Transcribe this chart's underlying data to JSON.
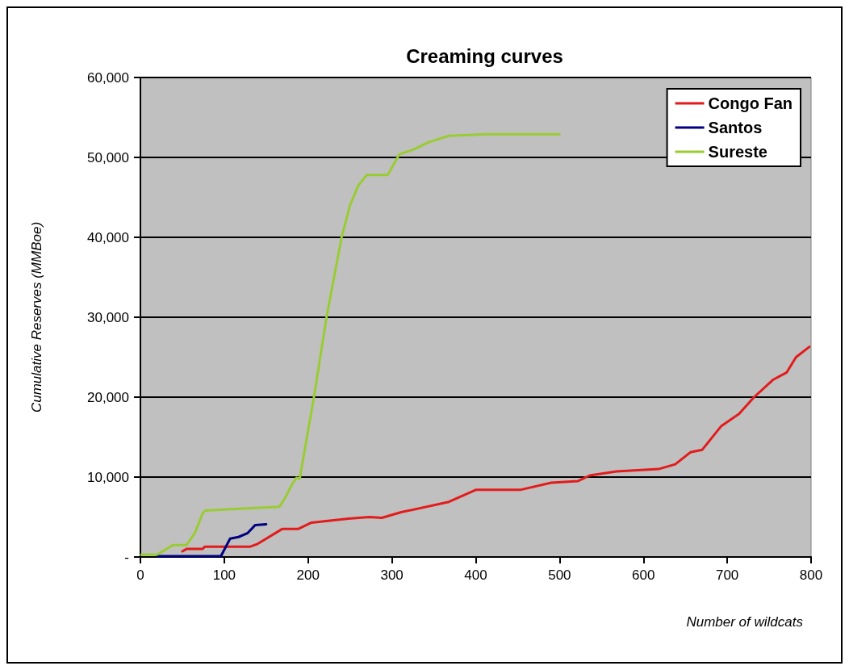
{
  "chart_data": {
    "type": "line",
    "title": "Creaming curves",
    "xlabel": "Number of wildcats",
    "ylabel": "Cumulative Reserves (MMBoe)",
    "xlim": [
      0,
      800
    ],
    "xticks": [
      0,
      100,
      200,
      300,
      400,
      500,
      600,
      700,
      800
    ],
    "ylim": [
      0,
      60000
    ],
    "yticks": [
      {
        "value": 0,
        "label": "-"
      },
      {
        "value": 10000,
        "label": "10,000"
      },
      {
        "value": 20000,
        "label": "20,000"
      },
      {
        "value": 30000,
        "label": "30,000"
      },
      {
        "value": 40000,
        "label": "40,000"
      },
      {
        "value": 50000,
        "label": "50,000"
      },
      {
        "value": 60000,
        "label": "60,000"
      }
    ],
    "grid": "y",
    "legend": "top right",
    "marker": "none",
    "line_style": "solid",
    "series": [
      {
        "name": "Congo Fan",
        "color": "#e31b1b",
        "x": [
          50,
          55,
          74,
          77,
          131,
          139,
          169,
          188,
          204,
          248,
          273,
          288,
          311,
          368,
          400,
          453,
          490,
          522,
          536,
          568,
          618,
          638,
          656,
          670,
          693,
          714,
          732,
          755,
          771,
          782,
          798
        ],
        "values": [
          700,
          1000,
          1000,
          1300,
          1300,
          1600,
          3500,
          3500,
          4300,
          4800,
          5000,
          4900,
          5600,
          6900,
          8400,
          8400,
          9300,
          9500,
          10200,
          10700,
          11000,
          11600,
          13100,
          13400,
          16400,
          17900,
          20000,
          22200,
          23100,
          25000,
          26300
        ]
      },
      {
        "name": "Santos",
        "color": "#000080",
        "x": [
          20,
          96,
          107,
          117,
          128,
          137,
          150
        ],
        "values": [
          100,
          100,
          2300,
          2500,
          3000,
          4000,
          4100
        ]
      },
      {
        "name": "Sureste",
        "color": "#99cc33",
        "x": [
          1,
          20,
          39,
          55,
          65,
          74,
          77,
          95,
          166,
          172,
          181,
          186,
          190,
          207,
          222,
          240,
          250,
          260,
          270,
          295,
          309,
          326,
          344,
          368,
          415,
          500
        ],
        "values": [
          300,
          300,
          1500,
          1500,
          3000,
          5400,
          5800,
          5900,
          6300,
          7300,
          9100,
          9900,
          9800,
          20000,
          30000,
          40000,
          44000,
          46500,
          47800,
          47800,
          50400,
          51000,
          51900,
          52700,
          52900,
          52900
        ]
      }
    ]
  }
}
